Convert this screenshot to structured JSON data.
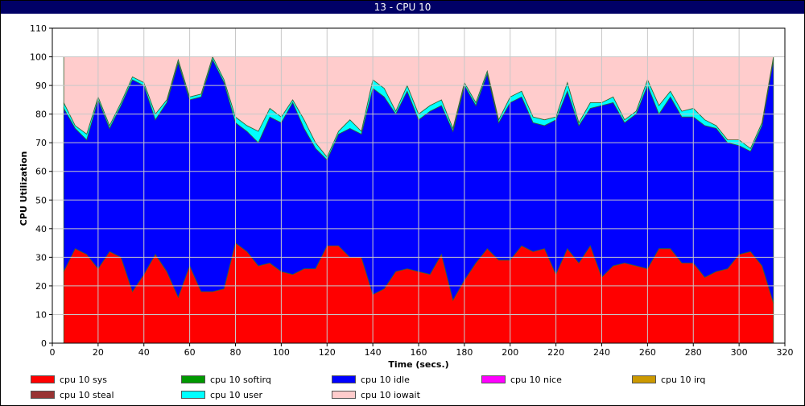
{
  "window": {
    "title": "13 - CPU 10"
  },
  "chart_data": {
    "type": "area",
    "stacked": true,
    "title": "13 - CPU 10",
    "xlabel": "Time (secs.)",
    "ylabel": "CPU Utilization",
    "xlim": [
      0,
      320
    ],
    "ylim": [
      0,
      110
    ],
    "x_ticks": [
      0,
      20,
      40,
      60,
      80,
      100,
      120,
      140,
      160,
      180,
      200,
      220,
      240,
      260,
      280,
      300,
      320
    ],
    "y_ticks": [
      0,
      10,
      20,
      30,
      40,
      50,
      60,
      70,
      80,
      90,
      100,
      110
    ],
    "grid": true,
    "x": [
      5,
      10,
      15,
      20,
      25,
      30,
      35,
      40,
      45,
      50,
      55,
      60,
      65,
      70,
      75,
      80,
      85,
      90,
      95,
      100,
      105,
      110,
      115,
      120,
      125,
      130,
      135,
      140,
      145,
      150,
      155,
      160,
      165,
      170,
      175,
      180,
      185,
      190,
      195,
      200,
      205,
      210,
      215,
      220,
      225,
      230,
      235,
      240,
      245,
      250,
      255,
      260,
      265,
      270,
      275,
      280,
      285,
      290,
      295,
      300,
      305,
      310,
      315
    ],
    "series": [
      {
        "name": "cpu 10 sys",
        "color": "#ff0000",
        "values": [
          25,
          33,
          31,
          26,
          32,
          30,
          18,
          24,
          31,
          25,
          16,
          27,
          18,
          18,
          19,
          35,
          32,
          27,
          28,
          25,
          24,
          26,
          26,
          34,
          34,
          30,
          30,
          17,
          19,
          25,
          26,
          25,
          24,
          31,
          15,
          22,
          28,
          33,
          29,
          29,
          34,
          32,
          33,
          24,
          33,
          28,
          34,
          23,
          27,
          28,
          27,
          26,
          33,
          33,
          28,
          28,
          23,
          25,
          26,
          31,
          32,
          27,
          14
        ]
      },
      {
        "name": "cpu 10 softirq",
        "color": "#009900",
        "values": [
          0,
          0,
          0,
          0,
          0,
          0,
          0,
          0,
          0,
          0,
          0,
          0,
          0,
          0,
          0,
          0,
          0,
          0,
          0,
          0,
          0,
          0,
          0,
          0,
          0,
          0,
          0,
          0,
          0,
          0,
          0,
          0,
          0,
          0,
          0,
          0,
          0,
          0,
          0,
          0,
          0,
          0,
          0,
          0,
          0,
          0,
          0,
          0,
          0,
          0,
          0,
          0,
          0,
          0,
          0,
          0,
          0,
          0,
          0,
          0,
          0,
          0,
          0
        ]
      },
      {
        "name": "cpu 10 idle",
        "color": "#0000ff",
        "values": [
          57,
          42,
          40,
          59,
          43,
          53,
          74,
          66,
          47,
          59,
          82,
          58,
          68,
          81,
          72,
          42,
          42,
          43,
          51,
          52,
          60,
          49,
          42,
          30,
          39,
          45,
          43,
          72,
          67,
          55,
          62,
          53,
          57,
          52,
          59,
          68,
          55,
          61,
          48,
          55,
          52,
          45,
          43,
          54,
          55,
          48,
          48,
          60,
          57,
          49,
          53,
          64,
          47,
          53,
          51,
          51,
          53,
          50,
          44,
          38,
          35,
          49,
          85
        ]
      },
      {
        "name": "cpu 10 nice",
        "color": "#ff00ff",
        "values": [
          0,
          0,
          0,
          0,
          0,
          0,
          0,
          0,
          0,
          0,
          0,
          0,
          0,
          0,
          0,
          0,
          0,
          0,
          0,
          0,
          0,
          0,
          0,
          0,
          0,
          0,
          0,
          0,
          0,
          0,
          0,
          0,
          0,
          0,
          0,
          0,
          0,
          0,
          0,
          0,
          0,
          0,
          0,
          0,
          0,
          0,
          0,
          0,
          0,
          0,
          0,
          0,
          0,
          0,
          0,
          0,
          0,
          0,
          0,
          0,
          0,
          0,
          0
        ]
      },
      {
        "name": "cpu 10 irq",
        "color": "#cc9900",
        "values": [
          0,
          0,
          0,
          0,
          0,
          0,
          0,
          0,
          0,
          0,
          0,
          0,
          0,
          0,
          0,
          0,
          0,
          0,
          0,
          0,
          0,
          0,
          0,
          0,
          0,
          0,
          0,
          0,
          0,
          0,
          0,
          0,
          0,
          0,
          0,
          0,
          0,
          0,
          0,
          0,
          0,
          0,
          0,
          0,
          0,
          0,
          0,
          0,
          0,
          0,
          0,
          0,
          0,
          0,
          0,
          0,
          0,
          0,
          0,
          0,
          0,
          0,
          0
        ]
      },
      {
        "name": "cpu 10 steal",
        "color": "#993333",
        "values": [
          0,
          0,
          0,
          0,
          0,
          0,
          0,
          0,
          0,
          0,
          0,
          0,
          0,
          0,
          0,
          0,
          0,
          0,
          0,
          0,
          0,
          0,
          0,
          0,
          0,
          0,
          0,
          0,
          0,
          0,
          0,
          0,
          0,
          0,
          0,
          0,
          0,
          0,
          0,
          0,
          0,
          0,
          0,
          0,
          0,
          0,
          0,
          0,
          0,
          0,
          0,
          0,
          0,
          0,
          0,
          0,
          0,
          0,
          0,
          0,
          0,
          0,
          0
        ]
      },
      {
        "name": "cpu 10 user",
        "color": "#00ffff",
        "values": [
          2,
          1,
          2,
          1,
          1,
          1,
          1,
          1,
          2,
          1,
          1,
          1,
          1,
          1,
          1,
          2,
          2,
          4,
          3,
          2,
          1,
          3,
          2,
          1,
          1,
          3,
          1,
          3,
          3,
          1,
          2,
          2,
          2,
          2,
          1,
          1,
          1,
          1,
          1,
          2,
          2,
          2,
          2,
          1,
          3,
          1,
          2,
          1,
          2,
          1,
          1,
          2,
          3,
          2,
          2,
          3,
          2,
          1,
          1,
          2,
          1,
          1,
          1
        ]
      },
      {
        "name": "cpu 10 iowait",
        "color": "#ffcccc",
        "values": [
          16,
          24,
          27,
          14,
          24,
          16,
          7,
          9,
          20,
          15,
          1,
          14,
          13,
          0,
          8,
          21,
          24,
          26,
          18,
          21,
          15,
          22,
          30,
          35,
          26,
          22,
          26,
          8,
          11,
          19,
          10,
          20,
          17,
          15,
          25,
          9,
          16,
          5,
          22,
          14,
          12,
          21,
          22,
          21,
          9,
          23,
          16,
          16,
          14,
          22,
          19,
          8,
          17,
          12,
          19,
          18,
          22,
          24,
          29,
          29,
          32,
          23,
          0
        ]
      }
    ]
  }
}
